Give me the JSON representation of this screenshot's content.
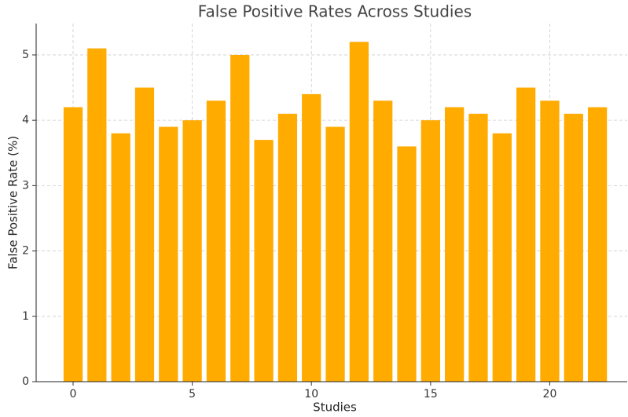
{
  "chart_data": {
    "type": "bar",
    "title": "False Positive Rates Across Studies",
    "x_label": "Studies",
    "y_label": "False Positive Rate (%)",
    "x": [
      0,
      1,
      2,
      3,
      4,
      5,
      6,
      7,
      8,
      9,
      10,
      11,
      12,
      13,
      14,
      15,
      16,
      17,
      18,
      19,
      20,
      21,
      22
    ],
    "values": [
      4.2,
      5.1,
      3.8,
      4.5,
      3.9,
      4.0,
      4.3,
      5.0,
      3.7,
      4.1,
      4.4,
      3.9,
      5.2,
      4.3,
      3.6,
      4.0,
      4.2,
      4.1,
      3.8,
      4.5,
      4.3,
      4.1,
      4.2
    ],
    "color": "#ffab00",
    "xlim": [
      -1.55,
      23.25
    ],
    "xticks": [
      0,
      5,
      10,
      15,
      20
    ],
    "ylim": [
      0,
      5.48
    ],
    "yticks": [
      0,
      1,
      2,
      3,
      4,
      5
    ],
    "grid": true
  }
}
